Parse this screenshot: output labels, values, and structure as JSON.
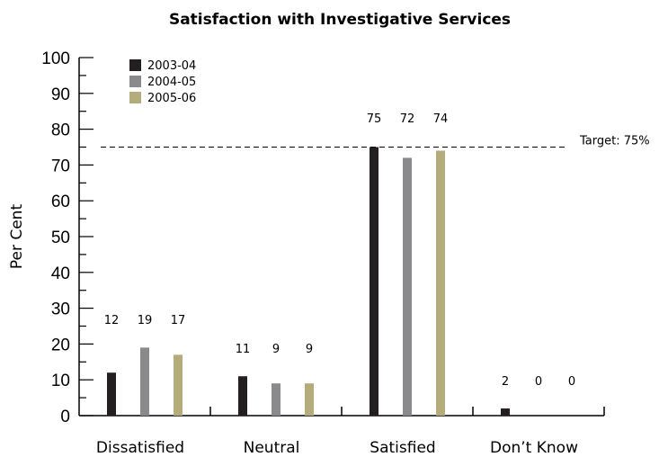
{
  "chart_data": {
    "type": "bar",
    "title": "Satisfaction with Investigative Services",
    "ylabel": "Per Cent",
    "xlabel": "",
    "ylim": [
      0,
      100
    ],
    "yticks": [
      0,
      10,
      20,
      30,
      40,
      50,
      60,
      70,
      80,
      90,
      100
    ],
    "grid": false,
    "legend_position": "top-left",
    "categories": [
      "Dissatisfied",
      "Neutral",
      "Satisfied",
      "Don’t Know"
    ],
    "series": [
      {
        "name": "2003-04",
        "color": "#231f20",
        "values": [
          12,
          11,
          75,
          2
        ]
      },
      {
        "name": "2004-05",
        "color": "#8a8a8d",
        "values": [
          19,
          9,
          72,
          0
        ]
      },
      {
        "name": "2005-06",
        "color": "#b5ac7c",
        "values": [
          17,
          9,
          74,
          0
        ]
      }
    ],
    "target": {
      "value": 75,
      "label": "Target: 75%"
    }
  }
}
